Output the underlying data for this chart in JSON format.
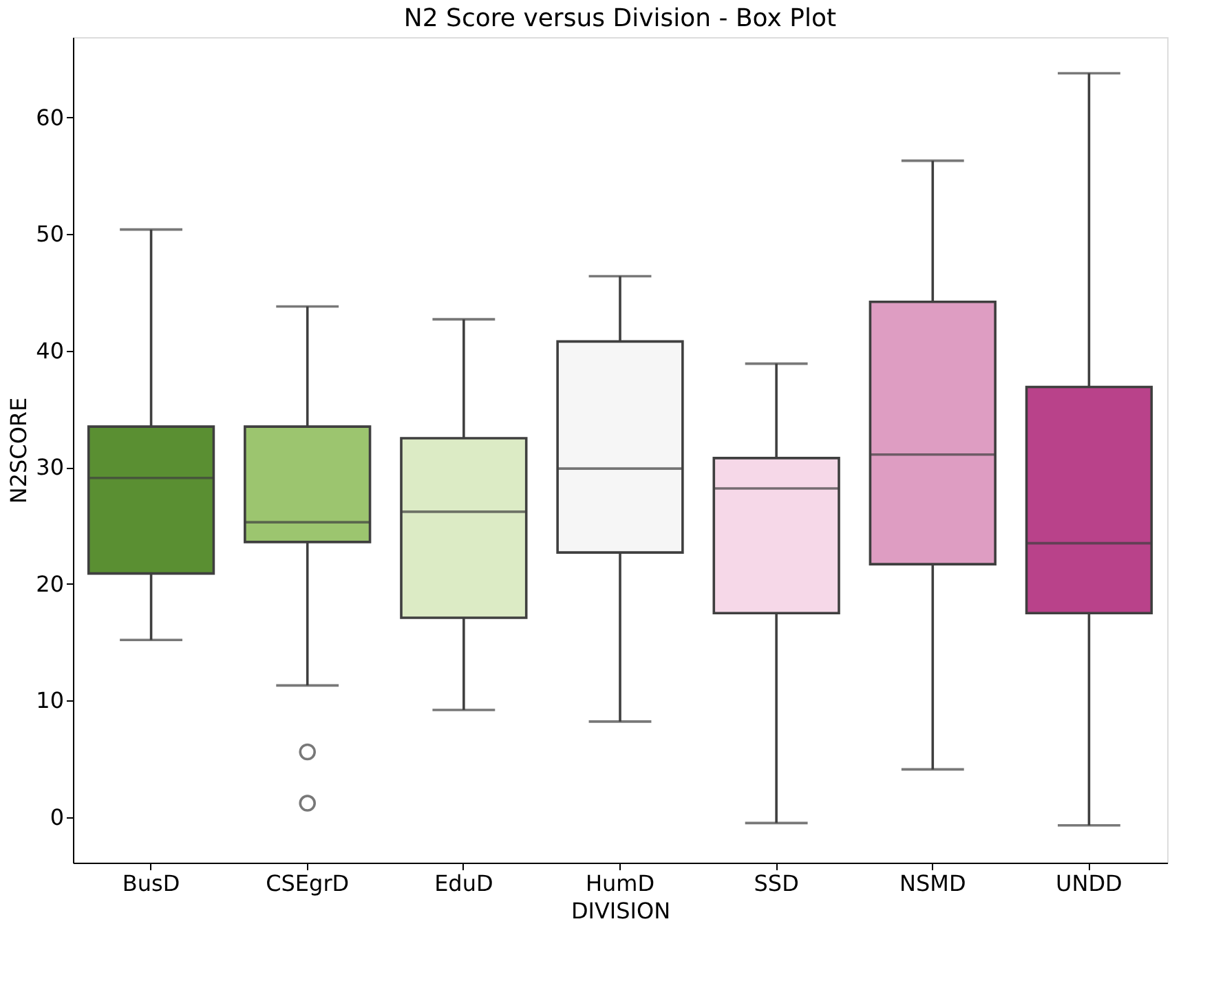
{
  "chart_data": {
    "type": "box",
    "title": "N2 Score versus Division - Box Plot",
    "xlabel": "DIVISION",
    "ylabel": "N2SCORE",
    "categories": [
      "BusD",
      "CSEgrD",
      "EduD",
      "HumD",
      "SSD",
      "NSMD",
      "UNDD"
    ],
    "colors": [
      "#5a8f32",
      "#9cc56f",
      "#dcebc5",
      "#f6f6f6",
      "#f6d8e8",
      "#de9dc2",
      "#b9428a"
    ],
    "boxes": [
      {
        "low": 15.2,
        "q1": 20.9,
        "median": 29.1,
        "q3": 33.5,
        "high": 50.4
      },
      {
        "low": 11.3,
        "q1": 23.6,
        "median": 25.3,
        "q3": 33.5,
        "high": 43.8,
        "outliers": [
          5.6,
          1.2
        ]
      },
      {
        "low": 9.2,
        "q1": 17.1,
        "median": 26.2,
        "q3": 32.5,
        "high": 42.7
      },
      {
        "low": 8.2,
        "q1": 22.7,
        "median": 29.9,
        "q3": 40.8,
        "high": 46.4
      },
      {
        "low": -0.5,
        "q1": 17.5,
        "median": 28.2,
        "q3": 30.8,
        "high": 38.9
      },
      {
        "low": 4.1,
        "q1": 21.7,
        "median": 31.1,
        "q3": 44.2,
        "high": 56.3
      },
      {
        "low": -0.7,
        "q1": 17.5,
        "median": 23.5,
        "q3": 36.9,
        "high": 63.8
      }
    ],
    "ylim": [
      -3.9,
      66.9
    ],
    "yticks": [
      0,
      10,
      20,
      30,
      40,
      50,
      60
    ],
    "grid": false
  }
}
